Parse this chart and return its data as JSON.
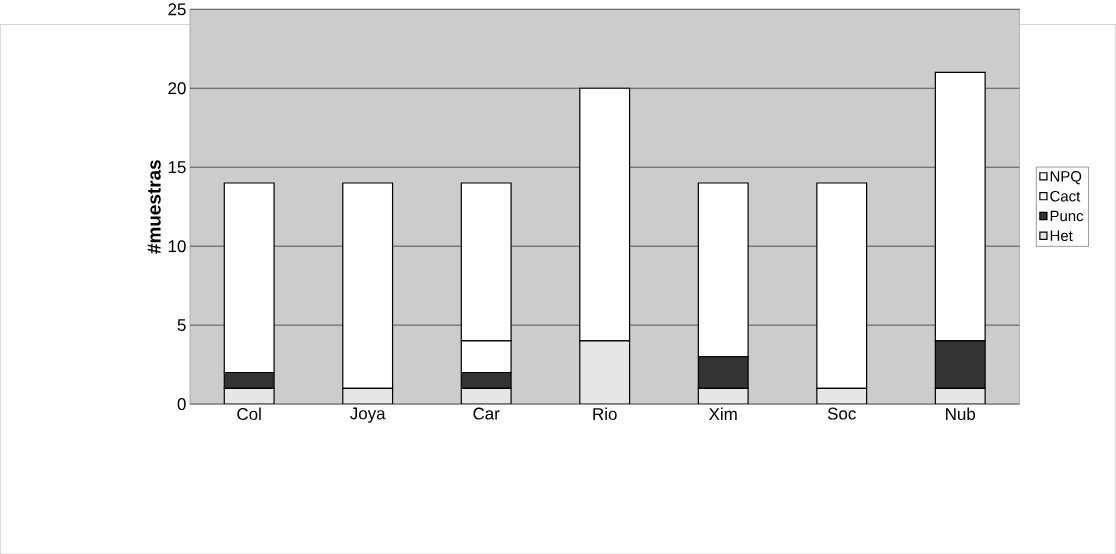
{
  "chart_data": {
    "type": "bar",
    "stacked": true,
    "ylabel": "#muestras",
    "categories": [
      "Col",
      "Joya",
      "Car",
      "Rio",
      "Xim",
      "Soc",
      "Nub"
    ],
    "series": [
      {
        "name": "Het",
        "color": "#e6e6e6",
        "values": [
          1,
          1,
          1,
          4,
          1,
          1,
          1
        ]
      },
      {
        "name": "Punc",
        "color": "#333333",
        "values": [
          1,
          0,
          1,
          0,
          2,
          0,
          3
        ]
      },
      {
        "name": "Cact",
        "color": "#ffffff",
        "values": [
          0,
          0,
          2,
          0,
          0,
          0,
          0
        ]
      },
      {
        "name": "NPQ",
        "color": "#ffffff",
        "values": [
          12,
          13,
          10,
          16,
          11,
          13,
          17
        ]
      }
    ],
    "ylim": [
      0,
      25
    ],
    "yticks": [
      0,
      5,
      10,
      15,
      20,
      25
    ],
    "grid": "y",
    "legend": "right"
  }
}
